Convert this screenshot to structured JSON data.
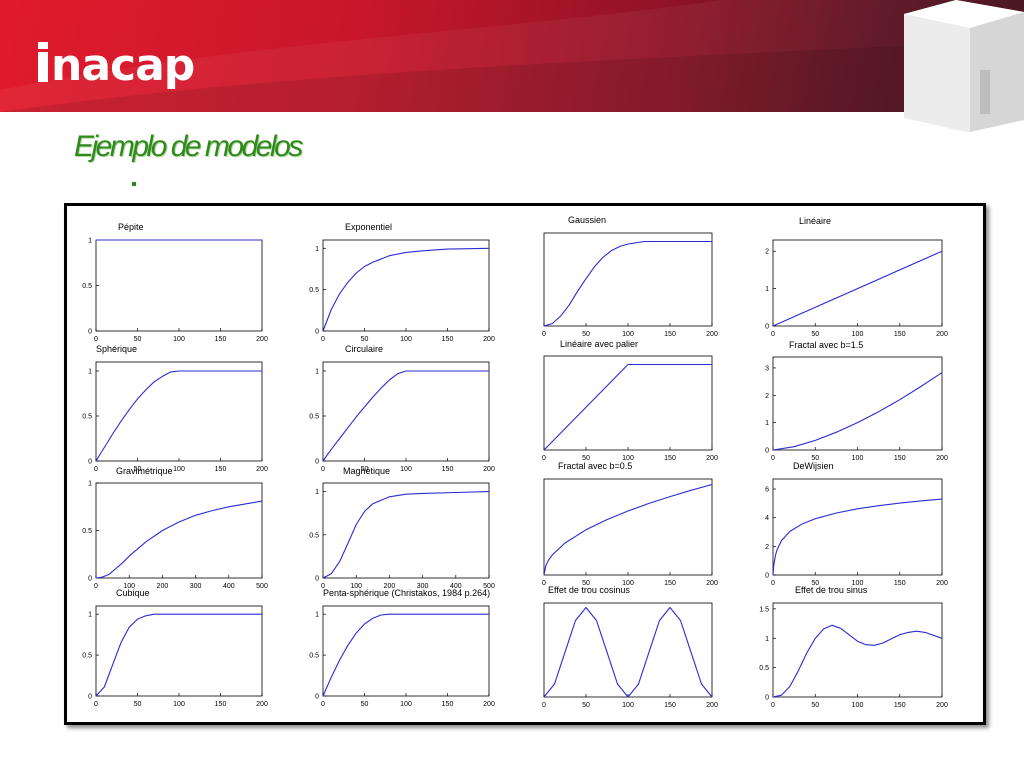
{
  "header": {
    "logo_text": "nacap",
    "slide_title": "Ejemplo de modelos",
    "banner_colors": [
      "#e01b2d",
      "#8e1226",
      "#3e0c17"
    ]
  },
  "colors": {
    "curve": "#2b2bd6",
    "axis": "#000000",
    "title": "#2f8a1c"
  },
  "chart_data": [
    {
      "type": "line",
      "title": "Pépite",
      "xlim": [
        0,
        200
      ],
      "ylim": [
        0,
        1
      ],
      "xticks": [
        "0",
        "50",
        "100",
        "150",
        "200"
      ],
      "yticks": [
        "0",
        "0.5",
        "1"
      ],
      "x": [
        0,
        200
      ],
      "y": [
        1,
        1
      ]
    },
    {
      "type": "line",
      "title": "Exponentiel",
      "xlim": [
        0,
        200
      ],
      "ylim": [
        0,
        1.1
      ],
      "xticks": [
        "0",
        "50",
        "100",
        "150",
        "200"
      ],
      "yticks": [
        "0",
        "0.5",
        "1"
      ],
      "x": [
        0,
        10,
        20,
        30,
        40,
        50,
        60,
        80,
        100,
        120,
        150,
        200
      ],
      "y": [
        0,
        0.26,
        0.45,
        0.59,
        0.7,
        0.78,
        0.83,
        0.91,
        0.95,
        0.97,
        0.99,
        1.0
      ]
    },
    {
      "type": "line",
      "title": "Gaussien",
      "xlim": [
        0,
        200
      ],
      "ylim": [
        0,
        1.1
      ],
      "xticks": [
        "0",
        "50",
        "100",
        "150",
        "200"
      ],
      "yticks": [],
      "x": [
        0,
        10,
        20,
        30,
        40,
        50,
        60,
        70,
        80,
        90,
        100,
        120,
        150,
        200
      ],
      "y": [
        0,
        0.03,
        0.12,
        0.25,
        0.41,
        0.56,
        0.7,
        0.81,
        0.89,
        0.94,
        0.97,
        1.0,
        1.0,
        1.0
      ]
    },
    {
      "type": "line",
      "title": "Linéaire",
      "xlim": [
        0,
        200
      ],
      "ylim": [
        0,
        2.3
      ],
      "xticks": [
        "0",
        "50",
        "100",
        "150",
        "200"
      ],
      "yticks": [
        "0",
        "1",
        "2"
      ],
      "x": [
        0,
        200
      ],
      "y": [
        0,
        2
      ]
    },
    {
      "type": "line",
      "title": "Sphérique",
      "xlim": [
        0,
        200
      ],
      "ylim": [
        0,
        1.1
      ],
      "xticks": [
        "0",
        "50",
        "100",
        "150",
        "200"
      ],
      "yticks": [
        "0",
        "0.5",
        "1"
      ],
      "x": [
        0,
        10,
        20,
        30,
        40,
        50,
        60,
        70,
        80,
        90,
        100,
        150,
        200
      ],
      "y": [
        0,
        0.15,
        0.3,
        0.44,
        0.57,
        0.69,
        0.79,
        0.88,
        0.94,
        0.99,
        1.0,
        1.0,
        1.0
      ]
    },
    {
      "type": "line",
      "title": "Circulaire",
      "xlim": [
        0,
        200
      ],
      "ylim": [
        0,
        1.1
      ],
      "xticks": [
        "0",
        "50",
        "100",
        "150",
        "200"
      ],
      "yticks": [
        "0",
        "0.5",
        "1"
      ],
      "x": [
        0,
        10,
        20,
        30,
        40,
        50,
        60,
        70,
        80,
        90,
        100,
        150,
        200
      ],
      "y": [
        0,
        0.13,
        0.25,
        0.37,
        0.49,
        0.6,
        0.71,
        0.81,
        0.9,
        0.97,
        1.0,
        1.0,
        1.0
      ]
    },
    {
      "type": "line",
      "title": "Linéaire avec palier",
      "xlim": [
        0,
        200
      ],
      "ylim": [
        0,
        1.1
      ],
      "xticks": [
        "0",
        "50",
        "100",
        "150",
        "200"
      ],
      "yticks": [],
      "x": [
        0,
        100,
        200
      ],
      "y": [
        0,
        1,
        1
      ]
    },
    {
      "type": "line",
      "title": "Fractal avec b=1.5",
      "xlim": [
        0,
        200
      ],
      "ylim": [
        0,
        3.4
      ],
      "xticks": [
        "0",
        "50",
        "100",
        "150",
        "200"
      ],
      "yticks": [
        "0",
        "1",
        "2",
        "3"
      ],
      "x": [
        0,
        25,
        50,
        75,
        100,
        125,
        150,
        175,
        200
      ],
      "y": [
        0,
        0.12,
        0.35,
        0.65,
        1.0,
        1.4,
        1.84,
        2.32,
        2.83
      ]
    },
    {
      "type": "line",
      "title": "Gravimétrique",
      "xlim": [
        0,
        500
      ],
      "ylim": [
        0,
        1.0
      ],
      "xticks": [
        "0",
        "100",
        "200",
        "300",
        "400",
        "500"
      ],
      "yticks": [
        "0",
        "0.5",
        "1"
      ],
      "x": [
        0,
        20,
        40,
        60,
        80,
        100,
        150,
        200,
        250,
        300,
        350,
        400,
        450,
        500
      ],
      "y": [
        0,
        0.01,
        0.04,
        0.1,
        0.16,
        0.23,
        0.38,
        0.5,
        0.59,
        0.66,
        0.71,
        0.75,
        0.78,
        0.81
      ]
    },
    {
      "type": "line",
      "title": "Magnétique",
      "xlim": [
        0,
        500
      ],
      "ylim": [
        0,
        1.1
      ],
      "xticks": [
        "0",
        "100",
        "200",
        "300",
        "400",
        "500"
      ],
      "yticks": [
        "0",
        "0.5",
        "1"
      ],
      "x": [
        0,
        25,
        50,
        75,
        100,
        125,
        150,
        200,
        250,
        300,
        400,
        500
      ],
      "y": [
        0,
        0.05,
        0.19,
        0.4,
        0.62,
        0.77,
        0.86,
        0.94,
        0.97,
        0.98,
        0.99,
        1.0
      ]
    },
    {
      "type": "line",
      "title": "Fractal avec b=0.5",
      "xlim": [
        0,
        200
      ],
      "ylim": [
        0,
        15
      ],
      "xticks": [
        "0",
        "50",
        "100",
        "150",
        "200"
      ],
      "yticks": [],
      "x": [
        0,
        2,
        5,
        10,
        25,
        50,
        75,
        100,
        125,
        150,
        175,
        200
      ],
      "y": [
        0,
        1.41,
        2.24,
        3.16,
        5.0,
        7.07,
        8.66,
        10.0,
        11.18,
        12.25,
        13.23,
        14.14
      ]
    },
    {
      "type": "line",
      "title": "DeWijsien",
      "xlim": [
        0,
        200
      ],
      "ylim": [
        0,
        6.7
      ],
      "xticks": [
        "0",
        "50",
        "100",
        "150",
        "200"
      ],
      "yticks": [
        "0",
        "2",
        "4",
        "6"
      ],
      "x": [
        0,
        1,
        3,
        5,
        10,
        20,
        35,
        50,
        75,
        100,
        125,
        150,
        175,
        200
      ],
      "y": [
        0,
        0.69,
        1.39,
        1.79,
        2.4,
        3.04,
        3.58,
        3.93,
        4.33,
        4.62,
        4.84,
        5.02,
        5.17,
        5.3
      ]
    },
    {
      "type": "line",
      "title": "Cubique",
      "xlim": [
        0,
        200
      ],
      "ylim": [
        0,
        1.1
      ],
      "xticks": [
        "0",
        "50",
        "100",
        "150",
        "200"
      ],
      "yticks": [
        "0",
        "0.5",
        "1"
      ],
      "x": [
        0,
        10,
        20,
        30,
        40,
        50,
        60,
        70,
        80,
        100,
        150,
        200
      ],
      "y": [
        0,
        0.11,
        0.38,
        0.65,
        0.84,
        0.94,
        0.98,
        1.0,
        1.0,
        1.0,
        1.0,
        1.0
      ]
    },
    {
      "type": "line",
      "title": "Penta-sphérique (Christakos, 1984 p.264)",
      "xlim": [
        0,
        200
      ],
      "ylim": [
        0,
        1.1
      ],
      "xticks": [
        "0",
        "50",
        "100",
        "150",
        "200"
      ],
      "yticks": [
        "0",
        "0.5",
        "1"
      ],
      "x": [
        0,
        10,
        20,
        30,
        40,
        50,
        60,
        70,
        80,
        100,
        150,
        200
      ],
      "y": [
        0,
        0.23,
        0.44,
        0.62,
        0.77,
        0.88,
        0.95,
        0.99,
        1.0,
        1.0,
        1.0,
        1.0
      ]
    },
    {
      "type": "line",
      "title": "Effet de trou cosinus",
      "xlim": [
        0,
        200
      ],
      "ylim": [
        0,
        2.1
      ],
      "xticks": [
        "0",
        "50",
        "100",
        "150",
        "200"
      ],
      "yticks": [],
      "x": [
        0,
        12.5,
        25,
        37.5,
        50,
        62.5,
        75,
        87.5,
        100,
        112.5,
        125,
        137.5,
        150,
        162.5,
        175,
        187.5,
        200
      ],
      "y": [
        0,
        0.29,
        1.0,
        1.71,
        2.0,
        1.71,
        1.0,
        0.29,
        0,
        0.29,
        1.0,
        1.71,
        2.0,
        1.71,
        1.0,
        0.29,
        0
      ]
    },
    {
      "type": "line",
      "title": "Effet de trou sinus",
      "xlim": [
        0,
        200
      ],
      "ylim": [
        0,
        1.6
      ],
      "xticks": [
        "0",
        "50",
        "100",
        "150",
        "200"
      ],
      "yticks": [
        "0",
        "0.5",
        "1",
        "1.5"
      ],
      "x": [
        0,
        10,
        20,
        30,
        40,
        50,
        60,
        70,
        80,
        90,
        100,
        110,
        120,
        130,
        140,
        150,
        160,
        170,
        180,
        190,
        200
      ],
      "y": [
        0,
        0.03,
        0.18,
        0.45,
        0.75,
        1.0,
        1.16,
        1.22,
        1.17,
        1.06,
        0.95,
        0.89,
        0.88,
        0.92,
        0.99,
        1.06,
        1.1,
        1.12,
        1.1,
        1.05,
        1.0
      ]
    }
  ]
}
